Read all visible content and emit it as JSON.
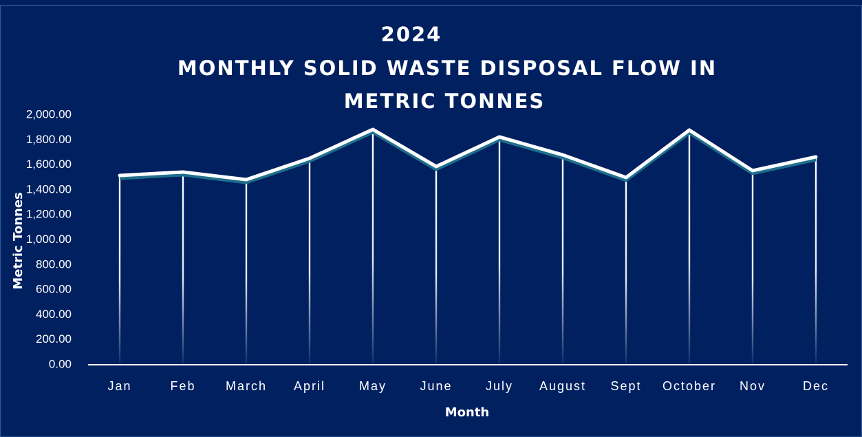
{
  "chart_data": {
    "type": "line",
    "title": [
      "2024",
      "MONTHLY SOLID WASTE DISPOSAL FLOW IN",
      "METRIC TONNES"
    ],
    "x_label": "Month",
    "y_label": "Metric Tonnes",
    "categories": [
      "Jan",
      "Feb",
      "March",
      "April",
      "May",
      "June",
      "July",
      "August",
      "Sept",
      "October",
      "Nov",
      "Dec"
    ],
    "series": [
      {
        "name": "Metric Tonnes",
        "color": "#ffffff",
        "values": [
          1515,
          1543,
          1482,
          1653,
          1884,
          1587,
          1824,
          1680,
          1499,
          1879,
          1554,
          1664
        ]
      }
    ],
    "ylim": [
      0,
      2000
    ],
    "yticks": [
      {
        "value": 0,
        "label": "0.00"
      },
      {
        "value": 200,
        "label": "200.00"
      },
      {
        "value": 400,
        "label": "400.00"
      },
      {
        "value": 600,
        "label": "600.00"
      },
      {
        "value": 800,
        "label": "800.00"
      },
      {
        "value": 1000,
        "label": "1,000.00"
      },
      {
        "value": 1200,
        "label": "1,200.00"
      },
      {
        "value": 1400,
        "label": "1,400.00"
      },
      {
        "value": 1600,
        "label": "1,600.00"
      },
      {
        "value": 1800,
        "label": "1,800.00"
      },
      {
        "value": 2000,
        "label": "2,000.00"
      }
    ],
    "drop_lines": true
  }
}
